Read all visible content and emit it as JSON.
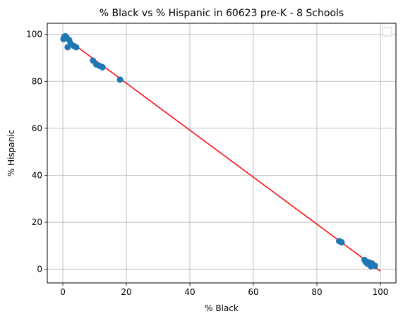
{
  "chart_data": {
    "type": "scatter",
    "title": "% Black vs % Hispanic in 60623 pre-K - 8 Schools",
    "xlabel": "% Black",
    "ylabel": "% Hispanic",
    "xlim": [
      -4.9,
      104.9
    ],
    "ylim": [
      -5.8,
      104.7
    ],
    "xticks": [
      0,
      20,
      40,
      60,
      80,
      100
    ],
    "yticks": [
      0,
      20,
      40,
      60,
      80,
      100
    ],
    "grid": true,
    "legend": {
      "position": "upper right",
      "entries": []
    },
    "colors": {
      "points": "#1f77b4",
      "fit_line": "#ff0000",
      "grid": "#b0b0b0"
    },
    "points": {
      "x": [
        0.2,
        0.5,
        0.8,
        1.2,
        1.5,
        2.0,
        2.5,
        3.5,
        4.2,
        9.5,
        10.5,
        11.5,
        12.5,
        18.0,
        87.0,
        87.8,
        95.0,
        95.3,
        95.6,
        96.0,
        96.3,
        96.6,
        97.0,
        97.3,
        97.8,
        98.3
      ],
      "y": [
        98.0,
        99.0,
        99.2,
        98.6,
        94.5,
        97.5,
        96.0,
        95.0,
        94.5,
        88.8,
        87.2,
        86.6,
        86.0,
        80.7,
        12.0,
        11.5,
        4.0,
        3.3,
        2.8,
        2.3,
        3.0,
        2.0,
        1.3,
        2.5,
        1.8,
        1.5
      ]
    },
    "fit_line": {
      "x": [
        0,
        100
      ],
      "y": [
        99.2,
        -0.8
      ]
    }
  }
}
